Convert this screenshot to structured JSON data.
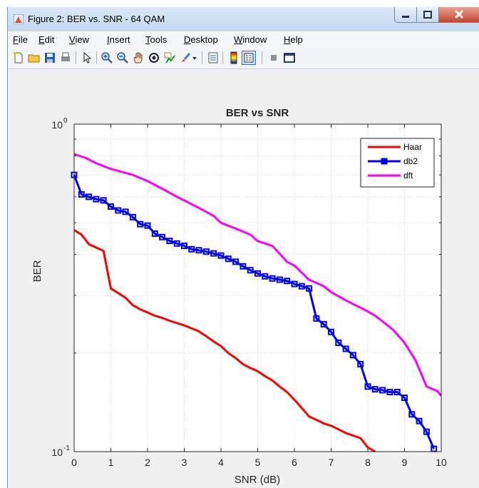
{
  "window": {
    "title": "Figure 2: BER vs. SNR - 64 QAM",
    "accent": "#c7432d"
  },
  "menu": {
    "items": [
      "File",
      "Edit",
      "View",
      "Insert",
      "Tools",
      "Desktop",
      "Window",
      "Help"
    ]
  },
  "toolbar": {
    "icons": [
      "new-figure-icon",
      "open-file-icon",
      "save-icon",
      "print-icon",
      "pointer-icon",
      "zoom-in-icon",
      "zoom-out-icon",
      "pan-icon",
      "rotate-3d-icon",
      "data-cursor-icon",
      "brush-icon",
      "brush-dropdown-icon",
      "link-plot-icon",
      "colorbar-icon",
      "legend-icon",
      "hide-plot-tools-icon",
      "show-plot-tools-icon"
    ]
  },
  "chart_data": {
    "type": "line",
    "title": "BER vs SNR",
    "xlabel": "SNR (dB)",
    "ylabel": "BER",
    "xlim": [
      0,
      10
    ],
    "ylim": [
      0.1,
      1
    ],
    "yscale": "log",
    "xticks": [
      "0",
      "1",
      "2",
      "3",
      "4",
      "5",
      "6",
      "7",
      "8",
      "9",
      "10"
    ],
    "yticks": [
      {
        "base": "10",
        "exp": "0"
      },
      {
        "base": "10",
        "exp": "-1"
      }
    ],
    "grid": true,
    "legend_position": "top-right",
    "series": [
      {
        "name": "Haar",
        "color": "#ff0000",
        "marker": "none",
        "x": [
          0,
          0.2,
          0.4,
          0.6,
          0.8,
          1.0,
          1.2,
          1.4,
          1.6,
          1.8,
          2.0,
          2.2,
          2.4,
          2.6,
          2.8,
          3.0,
          3.2,
          3.4,
          3.6,
          3.8,
          4.0,
          4.2,
          4.4,
          4.6,
          4.8,
          5.0,
          5.2,
          5.4,
          5.6,
          5.8,
          6.0,
          6.2,
          6.4,
          6.6,
          6.8,
          7.0,
          7.2,
          7.4,
          7.6,
          7.8,
          8.0,
          8.2
        ],
        "y": [
          0.475,
          0.46,
          0.43,
          0.42,
          0.41,
          0.315,
          0.305,
          0.295,
          0.28,
          0.272,
          0.266,
          0.26,
          0.256,
          0.251,
          0.247,
          0.243,
          0.238,
          0.233,
          0.225,
          0.217,
          0.21,
          0.2,
          0.193,
          0.185,
          0.18,
          0.176,
          0.17,
          0.165,
          0.158,
          0.152,
          0.144,
          0.136,
          0.128,
          0.125,
          0.122,
          0.12,
          0.117,
          0.114,
          0.112,
          0.11,
          0.103,
          0.1
        ]
      },
      {
        "name": "db2",
        "color": "#0000ff",
        "marker": "square",
        "x": [
          0,
          0.2,
          0.4,
          0.6,
          0.8,
          1.0,
          1.2,
          1.4,
          1.6,
          1.8,
          2.0,
          2.2,
          2.4,
          2.6,
          2.8,
          3.0,
          3.2,
          3.4,
          3.6,
          3.8,
          4.0,
          4.2,
          4.4,
          4.6,
          4.8,
          5.0,
          5.2,
          5.4,
          5.6,
          5.8,
          6.0,
          6.2,
          6.4,
          6.6,
          6.8,
          7.0,
          7.2,
          7.4,
          7.6,
          7.8,
          8.0,
          8.2,
          8.4,
          8.6,
          8.8,
          9.0,
          9.2,
          9.4,
          9.6,
          9.8
        ],
        "y": [
          0.7,
          0.61,
          0.6,
          0.59,
          0.585,
          0.56,
          0.545,
          0.54,
          0.52,
          0.495,
          0.49,
          0.463,
          0.452,
          0.44,
          0.432,
          0.425,
          0.415,
          0.412,
          0.408,
          0.403,
          0.397,
          0.388,
          0.38,
          0.368,
          0.358,
          0.35,
          0.343,
          0.338,
          0.335,
          0.332,
          0.325,
          0.32,
          0.315,
          0.255,
          0.245,
          0.232,
          0.215,
          0.206,
          0.197,
          0.185,
          0.158,
          0.155,
          0.154,
          0.152,
          0.152,
          0.146,
          0.13,
          0.124,
          0.115,
          0.102
        ]
      },
      {
        "name": "dft",
        "color": "#ff00ff",
        "marker": "none",
        "x": [
          0,
          0.3,
          0.6,
          1.0,
          1.3,
          1.6,
          2.0,
          2.4,
          2.8,
          3.0,
          3.4,
          3.8,
          4.0,
          4.4,
          4.8,
          5.0,
          5.4,
          5.8,
          6.0,
          6.4,
          6.8,
          7.0,
          7.4,
          7.8,
          8.0,
          8.2,
          8.4,
          8.7,
          9.0,
          9.3,
          9.6,
          9.9,
          10.0
        ],
        "y": [
          0.81,
          0.79,
          0.76,
          0.73,
          0.715,
          0.7,
          0.67,
          0.635,
          0.6,
          0.585,
          0.555,
          0.525,
          0.5,
          0.48,
          0.46,
          0.44,
          0.425,
          0.38,
          0.37,
          0.335,
          0.32,
          0.307,
          0.29,
          0.275,
          0.268,
          0.26,
          0.25,
          0.235,
          0.215,
          0.19,
          0.158,
          0.153,
          0.148
        ]
      }
    ]
  }
}
